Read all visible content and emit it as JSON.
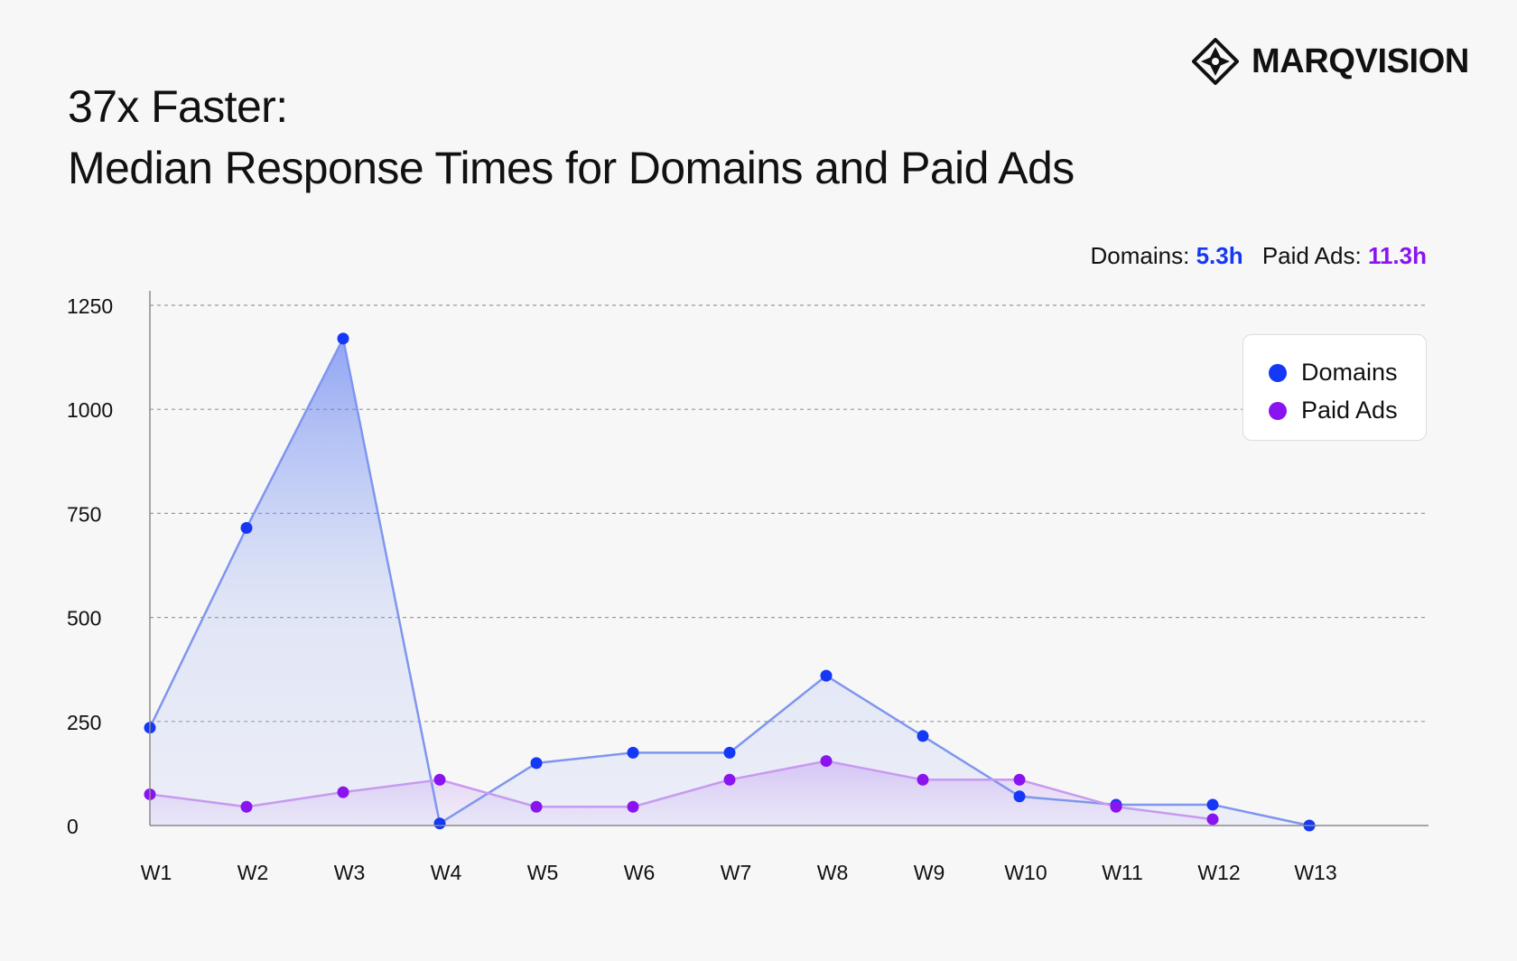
{
  "title_line1": "37x Faster:",
  "title_line2": "Median Response Times for Domains and Paid Ads",
  "logo_text": "MARQVISION",
  "summary": {
    "domains_label": "Domains:",
    "domains_value": "5.3h",
    "paid_ads_label": "Paid Ads:",
    "paid_ads_value": "11.3h"
  },
  "colors": {
    "domains": "#1438f5",
    "paid_ads": "#8a14f0",
    "domains_line": "#7f96ef",
    "paid_ads_line": "#c79af0"
  },
  "legend": {
    "domains": "Domains",
    "paid_ads": "Paid Ads"
  },
  "chart_data": {
    "type": "area",
    "categories": [
      "W1",
      "W2",
      "W3",
      "W4",
      "W5",
      "W6",
      "W7",
      "W8",
      "W9",
      "W10",
      "W11",
      "W12",
      "W13"
    ],
    "y_ticks": [
      "0",
      "250",
      "500",
      "750",
      "1000",
      "1250"
    ],
    "ylim": [
      0,
      1250
    ],
    "grid": "dashed horizontal",
    "legend_position": "top-right",
    "series": [
      {
        "name": "Domains",
        "values": [
          235,
          715,
          1170,
          5,
          150,
          175,
          175,
          360,
          215,
          70,
          50,
          50,
          0
        ]
      },
      {
        "name": "Paid Ads",
        "values": [
          75,
          45,
          80,
          110,
          45,
          45,
          110,
          155,
          110,
          110,
          45,
          15,
          null
        ]
      }
    ]
  }
}
